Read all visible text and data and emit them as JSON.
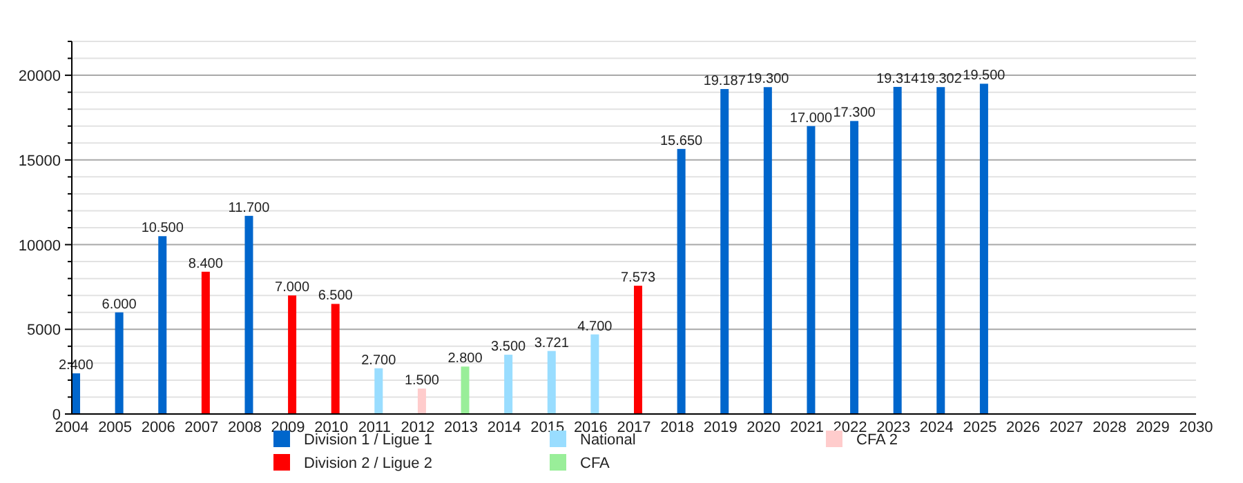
{
  "chart_data": {
    "type": "bar",
    "xlim": [
      2004,
      2030
    ],
    "xticks": [
      2004,
      2005,
      2006,
      2007,
      2008,
      2009,
      2010,
      2011,
      2012,
      2013,
      2014,
      2015,
      2016,
      2017,
      2018,
      2019,
      2020,
      2021,
      2022,
      2023,
      2024,
      2025,
      2026,
      2027,
      2028,
      2029,
      2030
    ],
    "ylim": [
      0,
      22000
    ],
    "yticks": [
      0,
      {
        "value": 1000,
        "label": null
      },
      {
        "value": 2000,
        "label": null
      },
      {
        "value": 3000,
        "label": null
      },
      {
        "value": 4000,
        "label": null
      },
      5000,
      {
        "value": 6000,
        "label": null
      },
      {
        "value": 7000,
        "label": null
      },
      {
        "value": 8000,
        "label": null
      },
      {
        "value": 9000,
        "label": null
      },
      10000,
      {
        "value": 11000,
        "label": null
      },
      {
        "value": 12000,
        "label": null
      },
      {
        "value": 13000,
        "label": null
      },
      {
        "value": 14000,
        "label": null
      },
      15000,
      {
        "value": 16000,
        "label": null
      },
      {
        "value": 17000,
        "label": null
      },
      {
        "value": 18000,
        "label": null
      },
      {
        "value": 19000,
        "label": null
      },
      20000,
      {
        "value": 21000,
        "label": null
      },
      {
        "value": 22000,
        "label": null
      }
    ],
    "grid": "y",
    "legend": "bottom",
    "series": [
      {
        "name": "Division 1 / Ligue 1",
        "color": "#0066cc",
        "x": [
          2004,
          2005,
          2006,
          2008,
          2018,
          2019,
          2020,
          2021,
          2022,
          2023,
          2024,
          2025
        ],
        "values": [
          2400,
          6000,
          10500,
          11700,
          15650,
          19187,
          19300,
          17000,
          17300,
          19314,
          19302,
          19500
        ],
        "value_labels": [
          "2.400",
          "6.000",
          "10.500",
          "11.700",
          "15.650",
          "19.187",
          "19.300",
          "17.000",
          "17.300",
          "19.314",
          "19.302",
          "19.500"
        ]
      },
      {
        "name": "Division 2 / Ligue 2",
        "color": "#ff0000",
        "x": [
          2007,
          2009,
          2010,
          2017
        ],
        "values": [
          8400,
          7000,
          6500,
          7573
        ],
        "value_labels": [
          "8.400",
          "7.000",
          "6.500",
          "7.573"
        ]
      },
      {
        "name": "National",
        "color": "#99ddff",
        "x": [
          2011,
          2014,
          2015,
          2016
        ],
        "values": [
          2700,
          3500,
          3721,
          4700
        ],
        "value_labels": [
          "2.700",
          "3.500",
          "3.721",
          "4.700"
        ]
      },
      {
        "name": "CFA",
        "color": "#99ee99",
        "x": [
          2013
        ],
        "values": [
          2800
        ],
        "value_labels": [
          "2.800"
        ]
      },
      {
        "name": "CFA 2",
        "color": "#ffcccc",
        "x": [
          2012
        ],
        "values": [
          1500
        ],
        "value_labels": [
          "1.500"
        ]
      }
    ]
  }
}
